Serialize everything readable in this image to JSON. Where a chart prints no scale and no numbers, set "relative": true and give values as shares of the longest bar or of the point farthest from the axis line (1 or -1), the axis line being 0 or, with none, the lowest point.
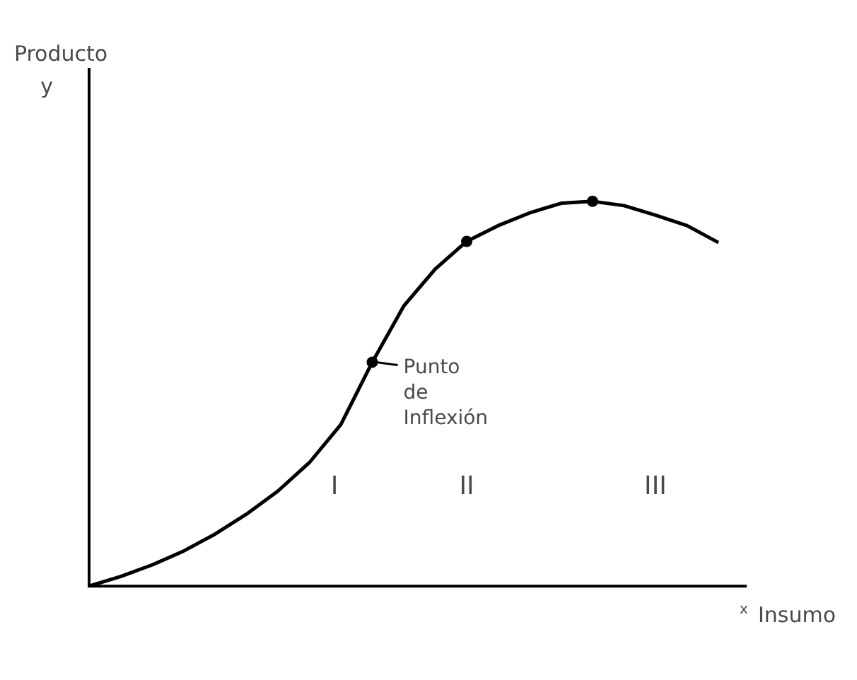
{
  "chart_data": {
    "type": "line",
    "relative": true,
    "ylabel": "Producto y",
    "xlabel": "x Insumo",
    "categories": [
      null,
      null,
      null,
      null,
      null,
      null,
      null,
      null,
      null,
      null,
      null,
      null,
      null,
      null,
      null,
      null,
      null,
      null,
      null,
      null,
      null
    ],
    "series": [
      {
        "color": "#000000",
        "values": [
          0,
          0.025,
          0.055,
          0.091,
          0.135,
          0.187,
          0.247,
          0.321,
          0.42,
          0.582,
          0.728,
          0.824,
          0.896,
          0.937,
          0.97,
          0.995,
          1,
          0.989,
          0.964,
          0.937,
          0.893
        ]
      }
    ],
    "annotations": [
      "Punto de Inflexión",
      "I",
      "II",
      "III"
    ],
    "grid": false,
    "legend": false,
    "marker": "none"
  }
}
